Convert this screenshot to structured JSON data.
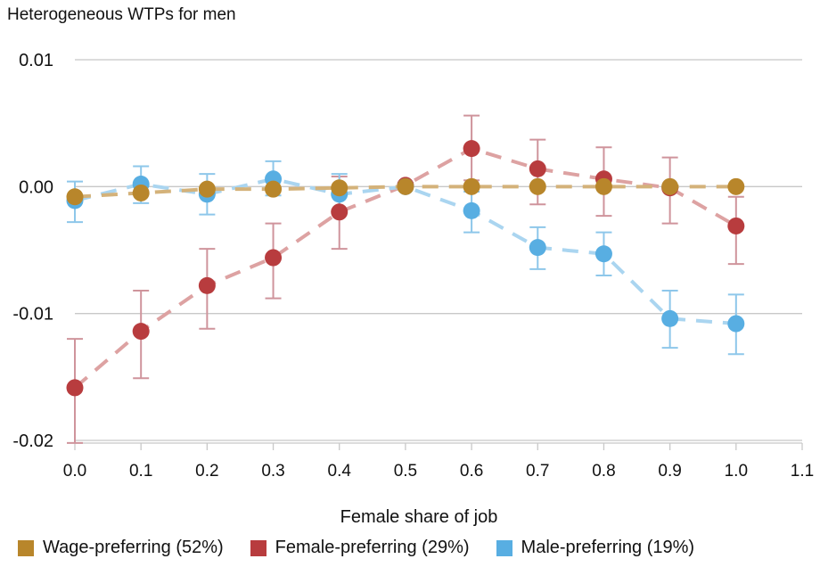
{
  "chart_data": {
    "type": "scatter",
    "title": "Heterogeneous WTPs for men",
    "xlabel": "Female share of job",
    "ylabel": "",
    "xlim": [
      0,
      1.1
    ],
    "ylim": [
      -0.02,
      0.01
    ],
    "xticks": [
      "0.0",
      "0.1",
      "0.2",
      "0.3",
      "0.4",
      "0.5",
      "0.6",
      "0.7",
      "0.8",
      "0.9",
      "1.0",
      "1.1"
    ],
    "yticks": [
      "0.01",
      "0.00",
      "-0.01",
      "-0.02"
    ],
    "grid": true,
    "legend_position": "bottom",
    "x": [
      0,
      0.1,
      0.2,
      0.3,
      0.4,
      0.5,
      0.6,
      0.7,
      0.8,
      0.9,
      1.0
    ],
    "series": [
      {
        "name": "Wage-preferring (52%)",
        "color": "#b8862b",
        "line": "#d4b27a",
        "values": [
          -0.0008,
          -0.0005,
          -0.0002,
          -0.0002,
          -0.0001,
          0,
          0,
          0,
          0,
          0,
          0
        ],
        "lower": [
          -0.0008,
          -0.0005,
          -0.0002,
          -0.0002,
          -0.0001,
          0,
          0,
          0,
          0,
          0,
          0
        ],
        "upper": [
          -0.0008,
          -0.0005,
          -0.0002,
          -0.0002,
          -0.0001,
          0,
          0,
          0,
          0,
          0,
          0
        ]
      },
      {
        "name": "Male-preferring (19%)",
        "color": "#58aee2",
        "line": "#aad5f0",
        "bar": "#8ec7ea",
        "values": [
          -0.0011,
          0.0002,
          -0.0006,
          0.0006,
          -0.0006,
          0,
          -0.0019,
          -0.0048,
          -0.0053,
          -0.0104,
          -0.0108
        ],
        "lower": [
          -0.0028,
          -0.0013,
          -0.0022,
          -0.0007,
          -0.002,
          -0.0001,
          -0.0036,
          -0.0065,
          -0.007,
          -0.0127,
          -0.0132
        ],
        "upper": [
          0.0004,
          0.0016,
          0.001,
          0.002,
          0.001,
          0.0001,
          -0.0004,
          -0.0032,
          -0.0036,
          -0.0082,
          -0.0085
        ]
      },
      {
        "name": "Female-preferring (29%)",
        "color": "#b83c3e",
        "line": "#dda2a2",
        "bar": "#cf949c",
        "values": [
          -0.01585,
          -0.0114,
          -0.0078,
          -0.0056,
          -0.002,
          0.0001,
          0.003,
          0.0014,
          0.0006,
          -0.0001,
          -0.0031
        ],
        "lower": [
          -0.0202,
          -0.0151,
          -0.0112,
          -0.0088,
          -0.0049,
          -0.0001,
          0.0005,
          -0.0014,
          -0.0023,
          -0.0029,
          -0.0061
        ],
        "upper": [
          -0.012,
          -0.0082,
          -0.0049,
          -0.0029,
          0.0008,
          0.0003,
          0.0056,
          0.0037,
          0.0031,
          0.0023,
          -0.0008
        ]
      }
    ],
    "legend_order": [
      0,
      2,
      1
    ]
  }
}
